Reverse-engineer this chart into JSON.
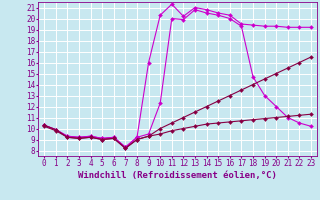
{
  "background_color": "#c8e8f0",
  "grid_color": "#ffffff",
  "line_color": "#880088",
  "xlabel": "Windchill (Refroidissement éolien,°C)",
  "xlabel_fontsize": 6.5,
  "tick_fontsize": 5.5,
  "xmin": -0.5,
  "xmax": 23.5,
  "ymin": 7.5,
  "ymax": 21.5,
  "series": [
    {
      "x": [
        0,
        1,
        2,
        3,
        4,
        5,
        6,
        7,
        8,
        9,
        10,
        11,
        12,
        13,
        14,
        15,
        16,
        17,
        18,
        19,
        20,
        21,
        22,
        23
      ],
      "y": [
        10.3,
        9.9,
        9.3,
        9.2,
        9.3,
        9.1,
        9.2,
        8.3,
        9.2,
        16.0,
        20.3,
        21.3,
        20.2,
        21.0,
        20.8,
        20.5,
        20.3,
        19.5,
        19.4,
        19.3,
        19.3,
        19.2,
        19.2,
        19.2
      ],
      "color": "#cc00cc",
      "marker": "D",
      "markersize": 2.0,
      "linewidth": 0.8
    },
    {
      "x": [
        0,
        1,
        2,
        3,
        4,
        5,
        6,
        7,
        8,
        9,
        10,
        11,
        12,
        13,
        14,
        15,
        16,
        17,
        18,
        19,
        20,
        21,
        22,
        23
      ],
      "y": [
        10.3,
        9.9,
        9.3,
        9.2,
        9.3,
        9.1,
        9.2,
        8.3,
        9.2,
        9.5,
        12.3,
        20.0,
        19.9,
        20.8,
        20.5,
        20.3,
        20.0,
        19.3,
        14.7,
        13.0,
        12.0,
        11.0,
        10.5,
        10.2
      ],
      "color": "#cc00cc",
      "marker": "D",
      "markersize": 2.0,
      "linewidth": 0.8
    },
    {
      "x": [
        0,
        1,
        2,
        3,
        4,
        5,
        6,
        7,
        8,
        9,
        10,
        11,
        12,
        13,
        14,
        15,
        16,
        17,
        18,
        19,
        20,
        21,
        22,
        23
      ],
      "y": [
        10.3,
        9.9,
        9.2,
        9.1,
        9.2,
        9.0,
        9.1,
        8.2,
        9.0,
        9.3,
        10.0,
        10.5,
        11.0,
        11.5,
        12.0,
        12.5,
        13.0,
        13.5,
        14.0,
        14.5,
        15.0,
        15.5,
        16.0,
        16.5
      ],
      "color": "#880044",
      "marker": "D",
      "markersize": 2.0,
      "linewidth": 0.8
    },
    {
      "x": [
        0,
        1,
        2,
        3,
        4,
        5,
        6,
        7,
        8,
        9,
        10,
        11,
        12,
        13,
        14,
        15,
        16,
        17,
        18,
        19,
        20,
        21,
        22,
        23
      ],
      "y": [
        10.2,
        9.8,
        9.2,
        9.1,
        9.2,
        9.0,
        9.1,
        8.2,
        9.0,
        9.3,
        9.5,
        9.8,
        10.0,
        10.2,
        10.4,
        10.5,
        10.6,
        10.7,
        10.8,
        10.9,
        11.0,
        11.1,
        11.2,
        11.3
      ],
      "color": "#880044",
      "marker": "D",
      "markersize": 2.0,
      "linewidth": 0.8
    }
  ],
  "yticks": [
    8,
    9,
    10,
    11,
    12,
    13,
    14,
    15,
    16,
    17,
    18,
    19,
    20,
    21
  ],
  "xticks": [
    0,
    1,
    2,
    3,
    4,
    5,
    6,
    7,
    8,
    9,
    10,
    11,
    12,
    13,
    14,
    15,
    16,
    17,
    18,
    19,
    20,
    21,
    22,
    23
  ]
}
